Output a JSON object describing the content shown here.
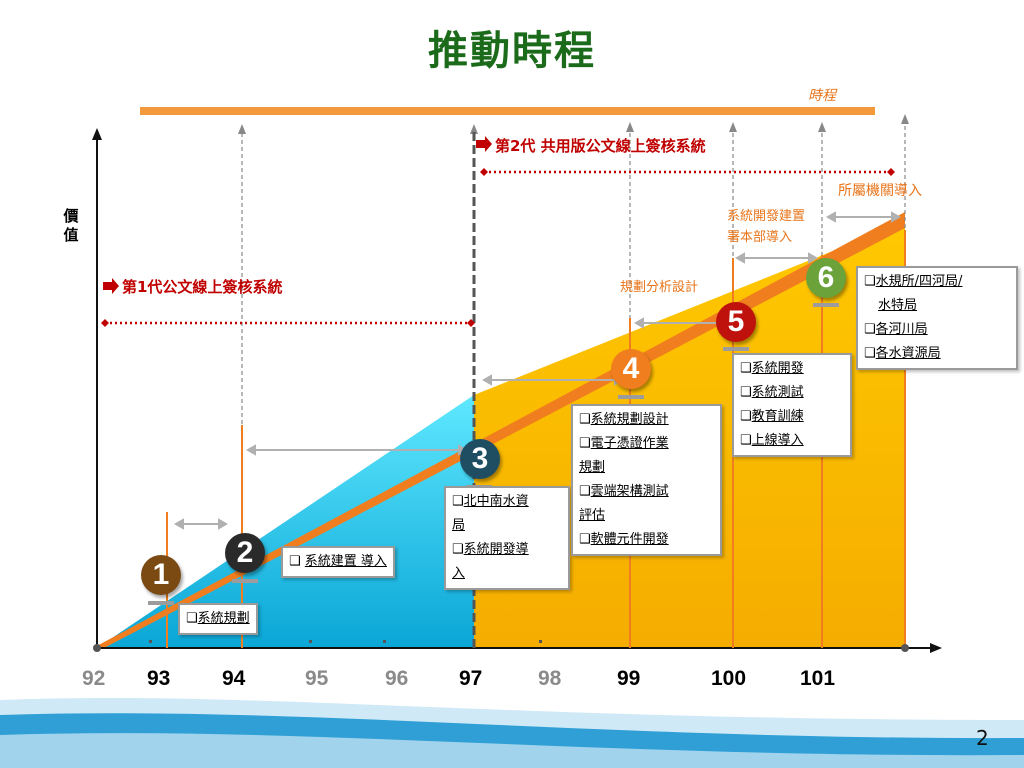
{
  "title": "推動時程",
  "timeline_label": "時程",
  "value_axis_label": "價值",
  "phase1_label": "第1代公文線上簽核系統",
  "phase2_label": "第2代 共用版公文線上簽核系統",
  "agency_rollout_label": "所屬機關導入",
  "sysdev_label_line1": "系統開發建置",
  "sysdev_label_line2": "署本部導入",
  "planning_label": "規劃分析設計",
  "years": [
    "92",
    "93",
    "94",
    "95",
    "96",
    "97",
    "98",
    "99",
    "100",
    "101"
  ],
  "steps": [
    {
      "number": "1",
      "color": "#7a4a12",
      "items": [
        "系統規劃"
      ]
    },
    {
      "number": "2",
      "color": "#2a2a2a",
      "items": [
        "系統建置 導入"
      ]
    },
    {
      "number": "3",
      "color": "#1f4e63",
      "items": [
        "北中南水資",
        "局",
        "系統開發導",
        "入"
      ]
    },
    {
      "number": "4",
      "color": "#f07e1e",
      "items": [
        "系統規劃設計",
        "電子憑證作業",
        "規劃",
        "雲端架構測試",
        "評估",
        "軟體元件開發"
      ]
    },
    {
      "number": "5",
      "color": "#c0120c",
      "items": [
        "系統開發",
        "系統測試",
        "教育訓練",
        "上線導入"
      ]
    },
    {
      "number": "6",
      "color": "#6ba23a",
      "items": [
        "水規所/四河局/",
        "水特局",
        "各河川局",
        "各水資源局"
      ]
    }
  ],
  "page_number": "2",
  "colors": {
    "title": "#1b6b1b",
    "accent": "#f07e1e",
    "phase_text": "#c00000",
    "cyan_fill": "#19c4ec",
    "yellow_fill": "#ffbe00"
  }
}
